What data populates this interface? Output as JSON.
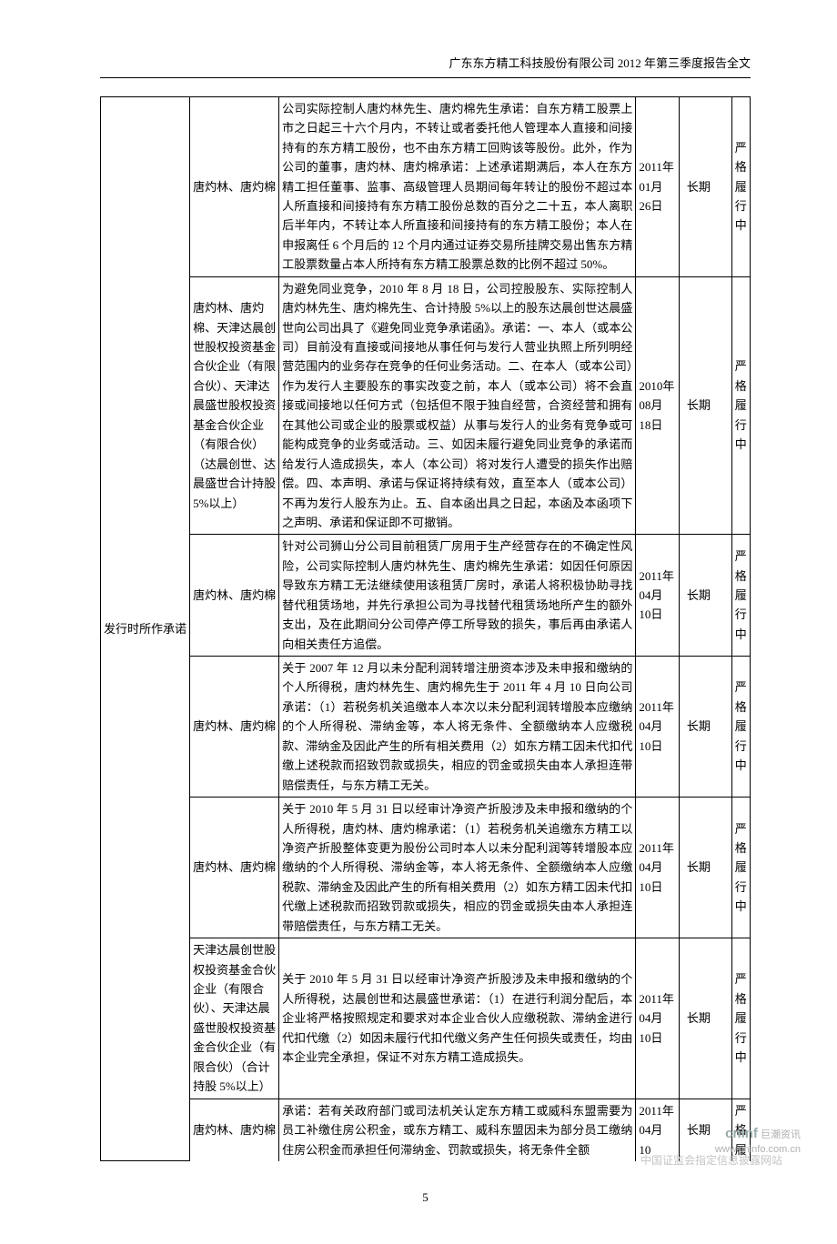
{
  "header": "广东东方精工科技股份有限公司 2012 年第三季度报告全文",
  "row_label": "发行时所作承诺",
  "page_number": "5",
  "rows": [
    {
      "col1": "唐灼林、唐灼棉",
      "col2": "公司实际控制人唐灼林先生、唐灼棉先生承诺：自东方精工股票上市之日起三十六个月内，不转让或者委托他人管理本人直接和间接持有的东方精工股份，也不由东方精工回购该等股份。此外，作为公司的董事，唐灼林、唐灼棉承诺：上述承诺期满后，本人在东方精工担任董事、监事、高级管理人员期间每年转让的股份不超过本人所直接和间接持有东方精工股份总数的百分之二十五，本人离职后半年内，不转让本人所直接和间接持有的东方精工股份；本人在申报离任 6 个月后的 12 个月内通过证券交易所挂牌交易出售东方精工股票数量占本人所持有东方精工股票总数的比例不超过 50%。",
      "col3": "2011年 01月 26日",
      "col4": "长期",
      "col6": "严格履行中"
    },
    {
      "col1": "唐灼林、唐灼棉、天津达晨创世股权投资基金合伙企业（有限合伙）、天津达晨盛世股权投资基金合伙企业（有限合伙）（达晨创世、达晨盛世合计持股5%以上）",
      "col2": "为避免同业竞争，2010 年 8 月 18 日，公司控股股东、实际控制人唐灼林先生、唐灼棉先生、合计持股 5%以上的股东达晨创世达晨盛世向公司出具了《避免同业竞争承诺函》。承诺：一、本人（或本公司）目前没有直接或间接地从事任何与发行人营业执照上所列明经营范围内的业务存在竞争的任何业务活动。二、在本人（或本公司）作为发行人主要股东的事实改变之前，本人（或本公司）将不会直接或间接地以任何方式（包括但不限于独自经营，合资经营和拥有在其他公司或企业的股票或权益）从事与发行人的业务有竞争或可能构成竞争的业务或活动。三、如因未履行避免同业竞争的承诺而给发行人造成损失，本人（本公司）将对发行人遭受的损失作出赔偿。四、本声明、承诺与保证将持续有效，直至本人（或本公司）不再为发行人股东为止。五、自本函出具之日起，本函及本函项下之声明、承诺和保证即不可撤销。",
      "col3": "2010年 08月 18日",
      "col4": "长期",
      "col6": "严格履行中"
    },
    {
      "col1": "唐灼林、唐灼棉",
      "col2": "针对公司狮山分公司目前租赁厂房用于生产经营存在的不确定性风险，公司实际控制人唐灼林先生、唐灼棉先生承诺：如因任何原因导致东方精工无法继续使用该租赁厂房时，承诺人将积极协助寻找替代租赁场地，并先行承担公司为寻找替代租赁场地所产生的额外支出，及在此期间分公司停产停工所导致的损失，事后再由承诺人向相关责任方追偿。",
      "col3": "2011年 04月 10日",
      "col4": "长期",
      "col6": "严格履行中"
    },
    {
      "col1": "唐灼林、唐灼棉",
      "col2": "关于 2007 年 12 月以未分配利润转增注册资本涉及未申报和缴纳的个人所得税，唐灼林先生、唐灼棉先生于 2011 年 4 月 10 日向公司承诺：（1）若税务机关追缴本人本次以未分配利润转增股本应缴纳的个人所得税、滞纳金等，本人将无条件、全额缴纳本人应缴税款、滞纳金及因此产生的所有相关费用（2）如东方精工因未代扣代缴上述税款而招致罚款或损失，相应的罚金或损失由本人承担连带赔偿责任，与东方精工无关。",
      "col3": "2011年 04月 10日",
      "col4": "长期",
      "col6": "严格履行中"
    },
    {
      "col1": "唐灼林、唐灼棉",
      "col2": "关于 2010 年 5 月 31 日以经审计净资产折股涉及未申报和缴纳的个人所得税，唐灼林、唐灼棉承诺：（1）若税务机关追缴东方精工以净资产折股整体变更为股份公司时本人以未分配利润等转增股本应缴纳的个人所得税、滞纳金等，本人将无条件、全额缴纳本人应缴税款、滞纳金及因此产生的所有相关费用（2）如东方精工因未代扣代缴上述税款而招致罚款或损失，相应的罚金或损失由本人承担连带赔偿责任，与东方精工无关。",
      "col3": "2011年 04月 10日",
      "col4": "长期",
      "col6": "严格履行中"
    },
    {
      "col1": "天津达晨创世股权投资基金合伙企业（有限合伙）、天津达晨盛世股权投资基金合伙企业（有限合伙）（合计持股 5%以上）",
      "col2": "关于 2010 年 5 月 31 日以经审计净资产折股涉及未申报和缴纳的个人所得税，达晨创世和达晨盛世承诺：（1）在进行利润分配后，本企业将严格按照规定和要求对本企业合伙人应缴税款、滞纳金进行代扣代缴（2）如因未履行代扣代缴义务产生任何损失或责任，均由本企业完全承担，保证不对东方精工造成损失。",
      "col3": "2011年 04月 10日",
      "col4": "长期",
      "col6": "严格履行中"
    },
    {
      "col1": "唐灼林、唐灼棉",
      "col2": "承诺：若有关政府部门或司法机关认定东方精工或威科东盟需要为员工补缴住房公积金，或东方精工、威科东盟因未为部分员工缴纳住房公积金而承担任何滞纳金、罚款或损失，将无条件全额",
      "col3": "2011年 04月 10",
      "col4": "长期",
      "col6": "严格履",
      "last": true
    }
  ],
  "watermark": {
    "brand": "cninf",
    "sub": "巨潮资讯",
    "url": "www.cninfo.com.cn",
    "note": "中国证监会指定信息披露网站"
  }
}
